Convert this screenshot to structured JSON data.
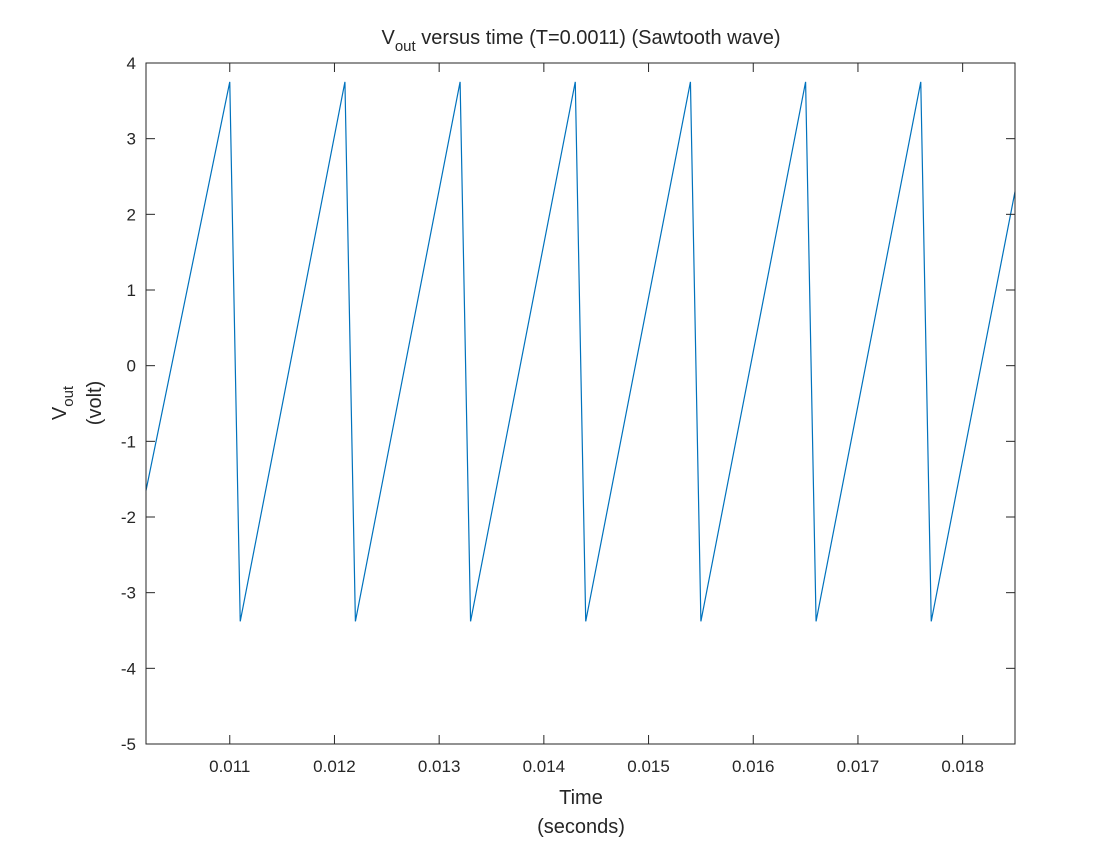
{
  "chart_data": {
    "type": "line",
    "title": {
      "main": "V",
      "sub": "out",
      "rest": " versus time (T=0.0011) (Sawtooth wave)"
    },
    "xlabel": [
      "Time",
      "(seconds)"
    ],
    "ylabel": {
      "main": "V",
      "sub": "out",
      "second_line": "(volt)"
    },
    "xlim": [
      0.0102,
      0.0185
    ],
    "ylim": [
      -5,
      4
    ],
    "xticks": [
      0.011,
      0.012,
      0.013,
      0.014,
      0.015,
      0.016,
      0.017,
      0.018
    ],
    "xtick_labels": [
      "0.011",
      "0.012",
      "0.013",
      "0.014",
      "0.015",
      "0.016",
      "0.017",
      "0.018"
    ],
    "yticks": [
      -5,
      -4,
      -3,
      -2,
      -1,
      0,
      1,
      2,
      3,
      4
    ],
    "ytick_labels": [
      "-5",
      "-4",
      "-3",
      "-2",
      "-1",
      "0",
      "1",
      "2",
      "3",
      "4"
    ],
    "grid": false,
    "box": true,
    "series": [
      {
        "color": "#0072bd",
        "x": [
          0.0102,
          0.011,
          0.0111,
          0.0121,
          0.0122,
          0.0132,
          0.0133,
          0.0143,
          0.0144,
          0.0154,
          0.0155,
          0.0165,
          0.0166,
          0.0176,
          0.0177,
          0.0185
        ],
        "y": [
          -1.65,
          3.75,
          -3.38,
          3.75,
          -3.38,
          3.75,
          -3.38,
          3.75,
          -3.38,
          3.75,
          -3.38,
          3.75,
          -3.38,
          3.75,
          -3.38,
          2.3
        ]
      }
    ]
  }
}
